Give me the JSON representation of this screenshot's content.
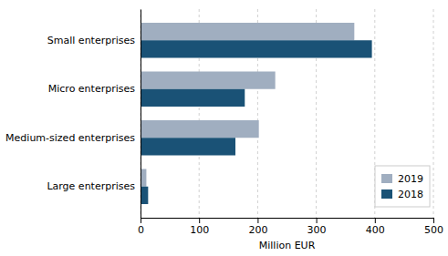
{
  "chart_data": {
    "type": "bar",
    "orientation": "horizontal",
    "categories": [
      "Small enterprises",
      "Micro enterprises",
      "Medium-sized enterprises",
      "Large enterprises"
    ],
    "series": [
      {
        "name": "2019",
        "color": "#a0aec0",
        "values": [
          365,
          230,
          202,
          10
        ]
      },
      {
        "name": "2018",
        "color": "#1a5276",
        "values": [
          395,
          178,
          162,
          13
        ]
      }
    ],
    "xlabel": "Million EUR",
    "xlim": [
      0,
      500
    ],
    "xticks": [
      0,
      100,
      200,
      300,
      400,
      500
    ],
    "grid": true,
    "legend": "lower right"
  }
}
